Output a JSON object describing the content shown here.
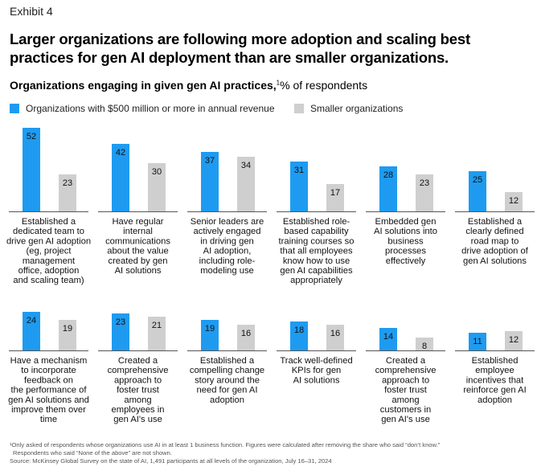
{
  "exhibit": "Exhibit 4",
  "title": "Larger organizations are following more adoption and scaling best practices for gen AI deployment than are smaller organizations.",
  "subtitle_bold": "Organizations engaging in given gen AI practices,",
  "subtitle_sup": "1",
  "subtitle_rest": "% of respondents",
  "colors": {
    "large": "#1e9bf0",
    "small": "#cfcfcf"
  },
  "footnotes": [
    "¹Only asked of respondents whose organizations use AI in at least 1 business function. Figures were calculated after removing the share who said “don’t know.”",
    "Respondents who said “None of the above” are not shown.",
    "Source: McKinsey Global Survey on the state of AI, 1,491 participants at all levels of the organization, July 16–31, 2024"
  ],
  "chart_data": {
    "type": "bar",
    "categories": [
      [
        "Established a",
        "dedicated team to",
        "drive gen AI adoption",
        "(eg, project",
        "management",
        "office, adoption",
        "and scaling team)"
      ],
      [
        "Have regular",
        "internal",
        "communications",
        "about the value",
        "created by gen",
        "AI solutions"
      ],
      [
        "Senior leaders are",
        "actively engaged",
        "in driving gen",
        "AI adoption,",
        "including role-",
        "modeling use"
      ],
      [
        "Established role-",
        "based capability",
        "training courses so",
        "that all employees",
        "know how to use",
        "gen AI capabilities",
        "appropriately"
      ],
      [
        "Embedded gen",
        "AI solutions into",
        "business",
        "processes",
        "effectively"
      ],
      [
        "Established a",
        "clearly defined",
        "road map to",
        "drive adoption of",
        "gen AI solutions"
      ],
      [
        "Have a mechanism",
        "to incorporate",
        "feedback on",
        "the performance of",
        "gen AI solutions and",
        "improve them over",
        "time"
      ],
      [
        "Created a",
        "comprehensive",
        "approach to",
        "foster trust",
        "among",
        "employees in",
        "gen AI's use"
      ],
      [
        "Established a",
        "compelling change",
        "story around the",
        "need for gen AI",
        "adoption"
      ],
      [
        "Track well-defined",
        "KPIs for gen",
        "AI solutions"
      ],
      [
        "Created a",
        "comprehensive",
        "approach to",
        "foster trust",
        "among",
        "customers in",
        "gen AI's use"
      ],
      [
        "Established",
        "employee",
        "incentives that",
        "reinforce gen AI",
        "adoption"
      ]
    ],
    "series": [
      {
        "name": "Organizations with $500 million or more in annual revenue",
        "values": [
          52,
          42,
          37,
          31,
          28,
          25,
          24,
          23,
          19,
          18,
          14,
          11
        ]
      },
      {
        "name": "Smaller organizations",
        "values": [
          23,
          30,
          34,
          17,
          23,
          12,
          19,
          21,
          16,
          16,
          8,
          12
        ]
      }
    ],
    "ylim": [
      0,
      52
    ],
    "grid": false,
    "legend": "top"
  }
}
